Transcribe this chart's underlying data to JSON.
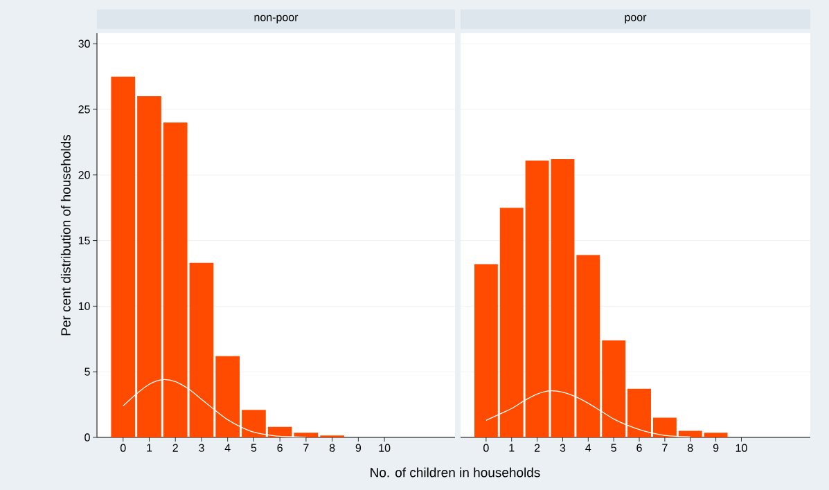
{
  "chart_data": [
    {
      "type": "bar",
      "title": "non-poor",
      "xlabel": "No. of children in households",
      "ylabel": "Per cent distribution of households",
      "xlim": [
        -1,
        12.7
      ],
      "xticks": [
        0,
        1,
        2,
        3,
        4,
        5,
        6,
        7,
        8,
        9,
        10
      ],
      "ylim": [
        0,
        30.8
      ],
      "yticks": [
        0,
        5,
        10,
        15,
        20,
        25,
        30
      ],
      "grid": "y",
      "marker": "none",
      "series": [
        {
          "color": "#ff4b00",
          "x": [
            0,
            1,
            2,
            3,
            4,
            5,
            6,
            7,
            8
          ],
          "values": [
            27.5,
            26.0,
            24.0,
            13.3,
            6.2,
            2.1,
            0.8,
            0.35,
            0.15
          ]
        },
        {
          "type": "line",
          "color": "#ffffff",
          "x": [
            0,
            0.5,
            1,
            1.5,
            2,
            2.5,
            3,
            3.5,
            4,
            4.5,
            5,
            5.5,
            6,
            7
          ],
          "values": [
            2.4,
            3.3,
            4.05,
            4.4,
            4.25,
            3.7,
            2.9,
            2.1,
            1.35,
            0.8,
            0.4,
            0.2,
            0.08,
            0.01
          ]
        }
      ]
    },
    {
      "type": "bar",
      "title": "poor",
      "xlim": [
        -1,
        12.7
      ],
      "xticks": [
        0,
        1,
        2,
        3,
        4,
        5,
        6,
        7,
        8,
        9,
        10
      ],
      "ylim": [
        0,
        30.8
      ],
      "yticks": [
        0,
        5,
        10,
        15,
        20,
        25,
        30
      ],
      "grid": "y",
      "marker": "none",
      "tick_labels": "x",
      "series": [
        {
          "color": "#ff4b00",
          "x": [
            0,
            1,
            2,
            3,
            4,
            5,
            6,
            7,
            8,
            9
          ],
          "values": [
            13.2,
            17.5,
            21.1,
            21.2,
            13.9,
            7.4,
            3.7,
            1.5,
            0.5,
            0.35
          ]
        },
        {
          "type": "line",
          "color": "#ffffff",
          "x": [
            0,
            0.5,
            1,
            1.5,
            2,
            2.5,
            3,
            3.5,
            4,
            4.5,
            5,
            5.5,
            6,
            6.5,
            7,
            7.5,
            8
          ],
          "values": [
            1.3,
            1.75,
            2.2,
            2.8,
            3.3,
            3.55,
            3.45,
            3.1,
            2.6,
            2.0,
            1.4,
            0.95,
            0.6,
            0.33,
            0.15,
            0.07,
            0.03
          ]
        }
      ]
    }
  ]
}
